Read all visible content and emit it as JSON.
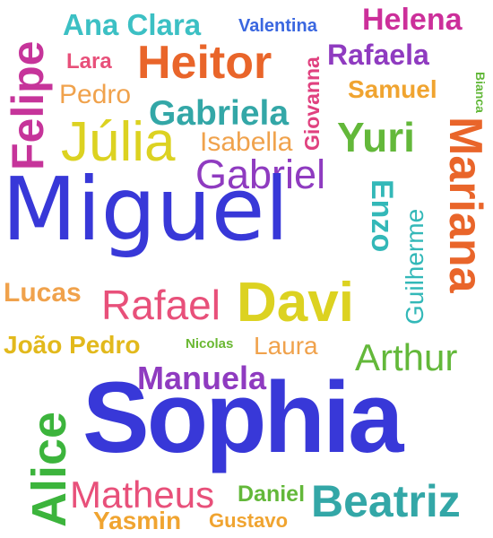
{
  "words": [
    {
      "text": "Ana Clara",
      "color": "#3cc0c4"
    },
    {
      "text": "Valentina",
      "color": "#3a67e0"
    },
    {
      "text": "Helena",
      "color": "#cc2f9a"
    },
    {
      "text": "Felipe",
      "color": "#c6349a"
    },
    {
      "text": "Lara",
      "color": "#e8507a"
    },
    {
      "text": "Heitor",
      "color": "#e9652a"
    },
    {
      "text": "Giovanna",
      "color": "#e0417f"
    },
    {
      "text": "Rafaela",
      "color": "#8f3bc0"
    },
    {
      "text": "Pedro",
      "color": "#f0a24c"
    },
    {
      "text": "Samuel",
      "color": "#f0a430"
    },
    {
      "text": "Bianca",
      "color": "#63b83a"
    },
    {
      "text": "Gabriela",
      "color": "#33a7a7"
    },
    {
      "text": "Júlia",
      "color": "#dcd221"
    },
    {
      "text": "Isabella",
      "color": "#f0a24c"
    },
    {
      "text": "Yuri",
      "color": "#63b83a"
    },
    {
      "text": "Mariana",
      "color": "#e9652a"
    },
    {
      "text": "Gabriel",
      "color": "#8f3bc0"
    },
    {
      "text": "Miguel",
      "color": "#3838d8"
    },
    {
      "text": "Enzo",
      "color": "#33b8b8"
    },
    {
      "text": "Guilherme",
      "color": "#33b8b8"
    },
    {
      "text": "Lucas",
      "color": "#f0a24c"
    },
    {
      "text": "Rafael",
      "color": "#e8507a"
    },
    {
      "text": "Davi",
      "color": "#dcd221"
    },
    {
      "text": "João Pedro",
      "color": "#e2b91c"
    },
    {
      "text": "Nicolas",
      "color": "#6ab832"
    },
    {
      "text": "Laura",
      "color": "#f0a24c"
    },
    {
      "text": "Arthur",
      "color": "#63b83a"
    },
    {
      "text": "Manuela",
      "color": "#8f3bc0"
    },
    {
      "text": "Alice",
      "color": "#3cb43c"
    },
    {
      "text": "Sophia",
      "color": "#3838d8"
    },
    {
      "text": "Matheus",
      "color": "#e8507a"
    },
    {
      "text": "Daniel",
      "color": "#63b83a"
    },
    {
      "text": "Beatriz",
      "color": "#33a7a7"
    },
    {
      "text": "Yasmin",
      "color": "#f0a430"
    },
    {
      "text": "Gustavo",
      "color": "#f0a430"
    }
  ]
}
